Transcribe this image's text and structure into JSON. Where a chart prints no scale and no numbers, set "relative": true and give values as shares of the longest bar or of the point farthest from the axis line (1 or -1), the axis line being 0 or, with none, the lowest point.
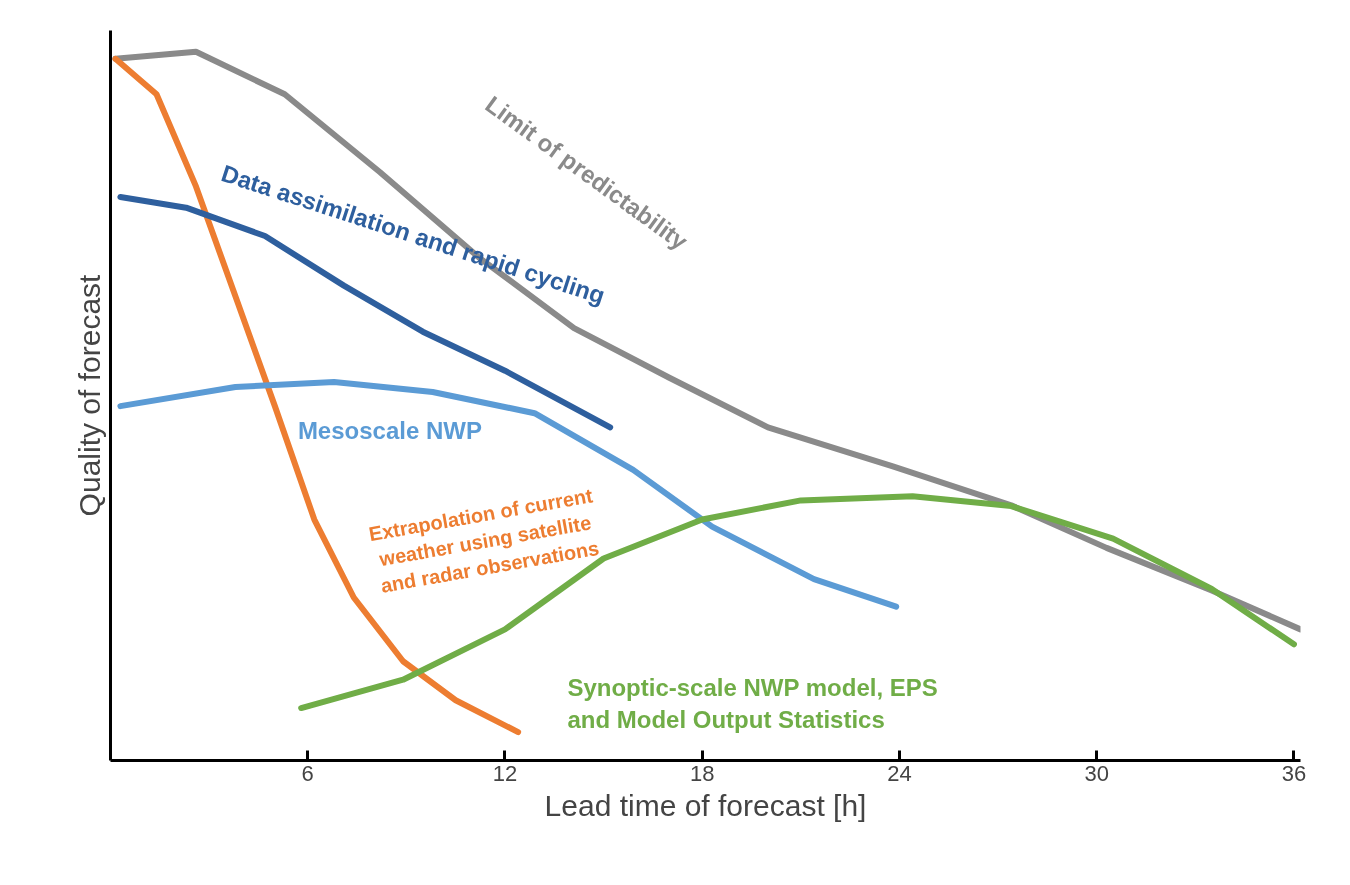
{
  "chart_data": {
    "type": "line",
    "relative": true,
    "xlabel": "Lead time of forecast [h]",
    "ylabel": "Quality of forecast",
    "xlim": [
      0,
      36.2
    ],
    "xticks": [
      6,
      12,
      18,
      24,
      30,
      36
    ],
    "grid": false,
    "marker": "none",
    "line_style": "solid",
    "tick_labels": "x",
    "series": [
      {
        "name": "Limit of predictability",
        "color": "#8a8a8a",
        "x": [
          0.15,
          2.6,
          5.3,
          8.2,
          11.2,
          14.1,
          17,
          20,
          23.8,
          27.4,
          30.3,
          33.5,
          36.2
        ],
        "values": [
          0.99,
          1,
          0.94,
          0.83,
          0.71,
          0.61,
          0.54,
          0.47,
          0.415,
          0.36,
          0.3,
          0.24,
          0.185
        ]
      },
      {
        "name": "Extrapolation of current\nweather using satellite\nand radar observations",
        "color": "#ed7d31",
        "x": [
          0.15,
          1.4,
          2.6,
          3.8,
          5,
          6.2,
          7.4,
          8.9,
          10.5,
          12.4
        ],
        "values": [
          0.99,
          0.94,
          0.81,
          0.655,
          0.5,
          0.34,
          0.23,
          0.14,
          0.085,
          0.04
        ]
      },
      {
        "name": "Data assimilation and rapid cycling",
        "color": "#2e5f9e",
        "x": [
          0.3,
          2.3,
          4.7,
          7.1,
          9.5,
          12,
          15.2
        ],
        "values": [
          0.795,
          0.78,
          0.74,
          0.67,
          0.605,
          0.55,
          0.47
        ]
      },
      {
        "name": "Mesoscale NWP",
        "color": "#5b9bd5",
        "x": [
          0.3,
          3.8,
          6.8,
          9.8,
          12.9,
          15.9,
          18.3,
          21.4,
          23.9
        ],
        "values": [
          0.5,
          0.527,
          0.534,
          0.52,
          0.49,
          0.41,
          0.33,
          0.256,
          0.217
        ]
      },
      {
        "name": "Synoptic-scale NWP model, EPS\nand Model Output Statistics",
        "color": "#70ad47",
        "x": [
          5.8,
          8.9,
          12,
          15,
          18,
          21,
          24.4,
          27.4,
          30.5,
          33.5,
          36
        ],
        "values": [
          0.074,
          0.114,
          0.185,
          0.285,
          0.34,
          0.367,
          0.373,
          0.359,
          0.313,
          0.242,
          0.164
        ]
      }
    ]
  }
}
